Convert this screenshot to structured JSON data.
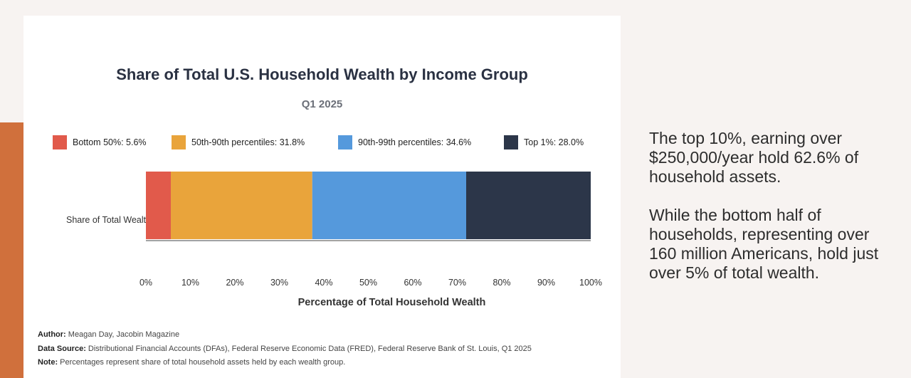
{
  "chart_data": {
    "type": "bar",
    "orientation": "horizontal",
    "stacked": true,
    "title": "Share of Total U.S. Household Wealth by Income Group",
    "subtitle": "Q1 2025",
    "categories": [
      "Share of Total Wealth"
    ],
    "series": [
      {
        "name": "Bottom 50%: 5.6%",
        "values": [
          5.6
        ],
        "color": "#e15a4b"
      },
      {
        "name": "50th-90th percentiles: 31.8%",
        "values": [
          31.8
        ],
        "color": "#e9a43b"
      },
      {
        "name": "90th-99th percentiles: 34.6%",
        "values": [
          34.6
        ],
        "color": "#5599dc"
      },
      {
        "name": "Top 1%: 28.0%",
        "values": [
          28.0
        ],
        "color": "#2c3649"
      }
    ],
    "xlabel": "Percentage of Total Household Wealth",
    "xlim": [
      0,
      100
    ],
    "xticks": [
      "0%",
      "10%",
      "20%",
      "30%",
      "40%",
      "50%",
      "60%",
      "70%",
      "80%",
      "90%",
      "100%"
    ],
    "legend_position": "top",
    "grid": false
  },
  "footer": {
    "author_label": "Author:",
    "author": "Meagan Day, Jacobin Magazine",
    "source_label": "Data Source:",
    "source": "Distributional Financial Accounts (DFAs), Federal Reserve Economic Data (FRED), Federal Reserve Bank of St. Louis, Q1 2025",
    "note_label": "Note:",
    "note": "Percentages represent share of total household assets held by each wealth group."
  },
  "side": {
    "paragraph1": "The top 10%, earning over $250,000/year hold 62.6% of household assets.",
    "paragraph2": "While the bottom half of households, representing over 160 million Americans, hold just over 5% of total wealth."
  },
  "colors": {
    "accent": "#d0703c"
  }
}
